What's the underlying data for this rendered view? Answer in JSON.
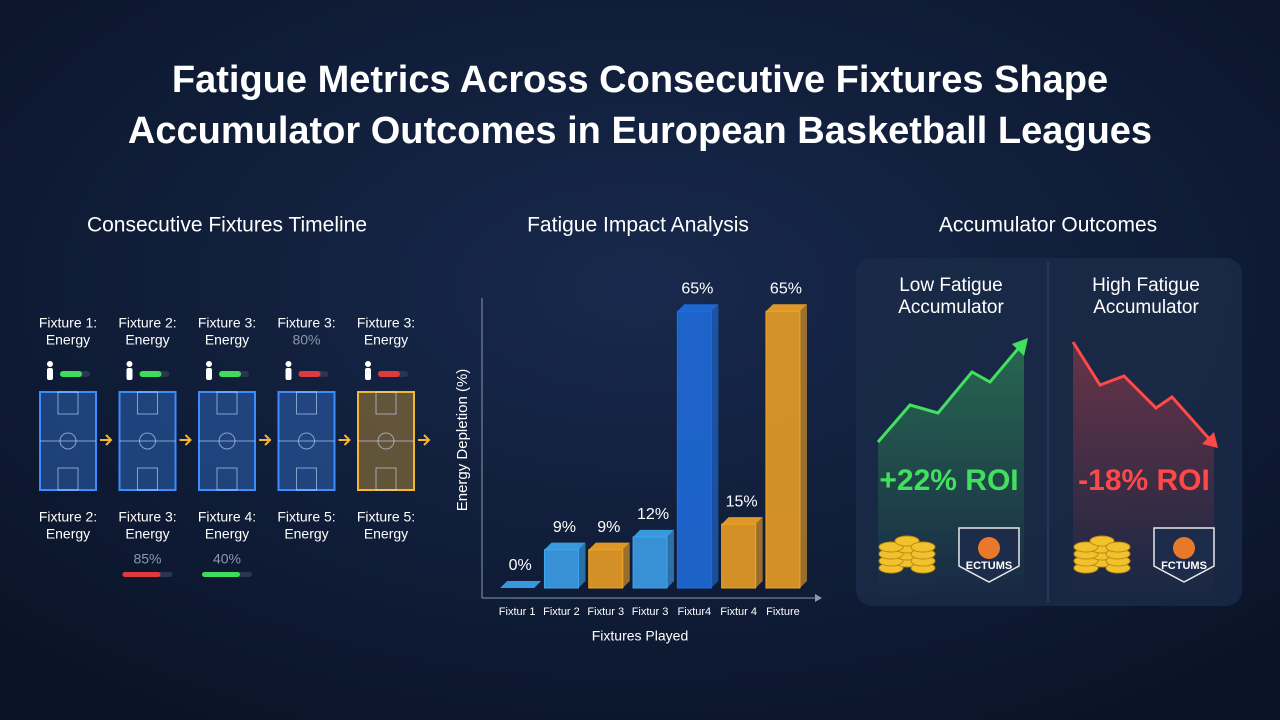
{
  "title": [
    "Fatigue Metrics Across Consecutive Fixtures Shape",
    "Accumulator Outcomes in European Basketball Leagues"
  ],
  "timeline": {
    "heading": "Consecutive Fixtures Timeline",
    "top": [
      {
        "lines": [
          "Fixture 1:",
          "Energy"
        ],
        "meter": "#3ddc5a",
        "court": "#3b8cff"
      },
      {
        "lines": [
          "Fixture 2:",
          "Energy"
        ],
        "meter": "#3ddc5a",
        "court": "#3b8cff"
      },
      {
        "lines": [
          "Fixture 3:",
          "Energy"
        ],
        "meter": "#3ddc5a",
        "court": "#3b8cff"
      },
      {
        "lines": [
          "Fixture 3:",
          "80%"
        ],
        "meter": "#e0393e",
        "court": "#3b8cff"
      },
      {
        "lines": [
          "Fixture 3:",
          "Energy"
        ],
        "meter": "#e0393e",
        "court": "#f5b731"
      }
    ],
    "bottom": [
      {
        "lines": [
          "Fixture 2:",
          "Energy"
        ]
      },
      {
        "lines": [
          "Fixture 3:",
          "Energy",
          "85%"
        ],
        "meter": "#e0393e"
      },
      {
        "lines": [
          "Fixture 4:",
          "Energy",
          "40%"
        ],
        "meter": "#3ddc5a"
      },
      {
        "lines": [
          "Fixture 5:",
          "Energy"
        ]
      },
      {
        "lines": [
          "Fixture 5:",
          "Energy"
        ]
      }
    ]
  },
  "chart_data": {
    "type": "bar",
    "title": "Fatigue Impact Analysis",
    "categories": [
      "Fixtur 1",
      "Fixtur 2",
      "Fixtur 3",
      "Fixtur 3",
      "Fixtur4",
      "Fixtur 4",
      "Fixture"
    ],
    "values": [
      0,
      9,
      9,
      12,
      65,
      15,
      65
    ],
    "value_labels": [
      "0%",
      "9%",
      "9%",
      "12%",
      "65%",
      "15%",
      "65%"
    ],
    "colors": [
      "#3ea6f0",
      "#3ea6f0",
      "#f5a524",
      "#3ea6f0",
      "#1f6fe0",
      "#f5a524",
      "#f5a524"
    ],
    "ylabel": "Energy Depletion (%)",
    "xlabel": "Fixtures Played",
    "ylim": [
      0,
      70
    ]
  },
  "outcomes": {
    "heading": "Accumulator Outcomes",
    "cards": [
      {
        "title": [
          "Low Fatigue",
          "Accumulator"
        ],
        "roi": "+22% ROI",
        "color": "#43e060",
        "badge": "ECTUMS"
      },
      {
        "title": [
          "High Fatigue",
          "Accumulator"
        ],
        "roi": "-18% ROI",
        "color": "#ff4848",
        "badge": "FCTUMS"
      }
    ]
  }
}
